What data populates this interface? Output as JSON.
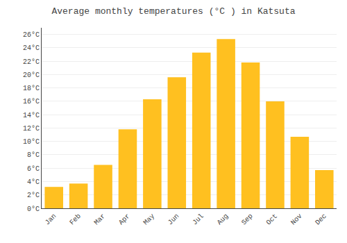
{
  "chart_data": {
    "type": "bar",
    "title": "Average monthly temperatures (°C ) in Katsuta",
    "categories": [
      "Jan",
      "Feb",
      "Mar",
      "Apr",
      "May",
      "Jun",
      "Jul",
      "Aug",
      "Sep",
      "Oct",
      "Nov",
      "Dec"
    ],
    "values": [
      3.2,
      3.7,
      6.5,
      11.8,
      16.3,
      19.6,
      23.3,
      25.3,
      21.8,
      16.0,
      10.7,
      5.7
    ],
    "color": "#FFC020",
    "ylim": [
      0,
      27
    ],
    "yticks": [
      {
        "value": 0,
        "label": "0°C"
      },
      {
        "value": 2,
        "label": "2°C"
      },
      {
        "value": 4,
        "label": "4°C"
      },
      {
        "value": 6,
        "label": "6°C"
      },
      {
        "value": 8,
        "label": "8°C"
      },
      {
        "value": 10,
        "label": "10°C"
      },
      {
        "value": 12,
        "label": "12°C"
      },
      {
        "value": 14,
        "label": "14°C"
      },
      {
        "value": 16,
        "label": "16°C"
      },
      {
        "value": 18,
        "label": "18°C"
      },
      {
        "value": 20,
        "label": "20°C"
      },
      {
        "value": 22,
        "label": "22°C"
      },
      {
        "value": 24,
        "label": "24°C"
      },
      {
        "value": 26,
        "label": "26°C"
      }
    ],
    "grid": true
  }
}
